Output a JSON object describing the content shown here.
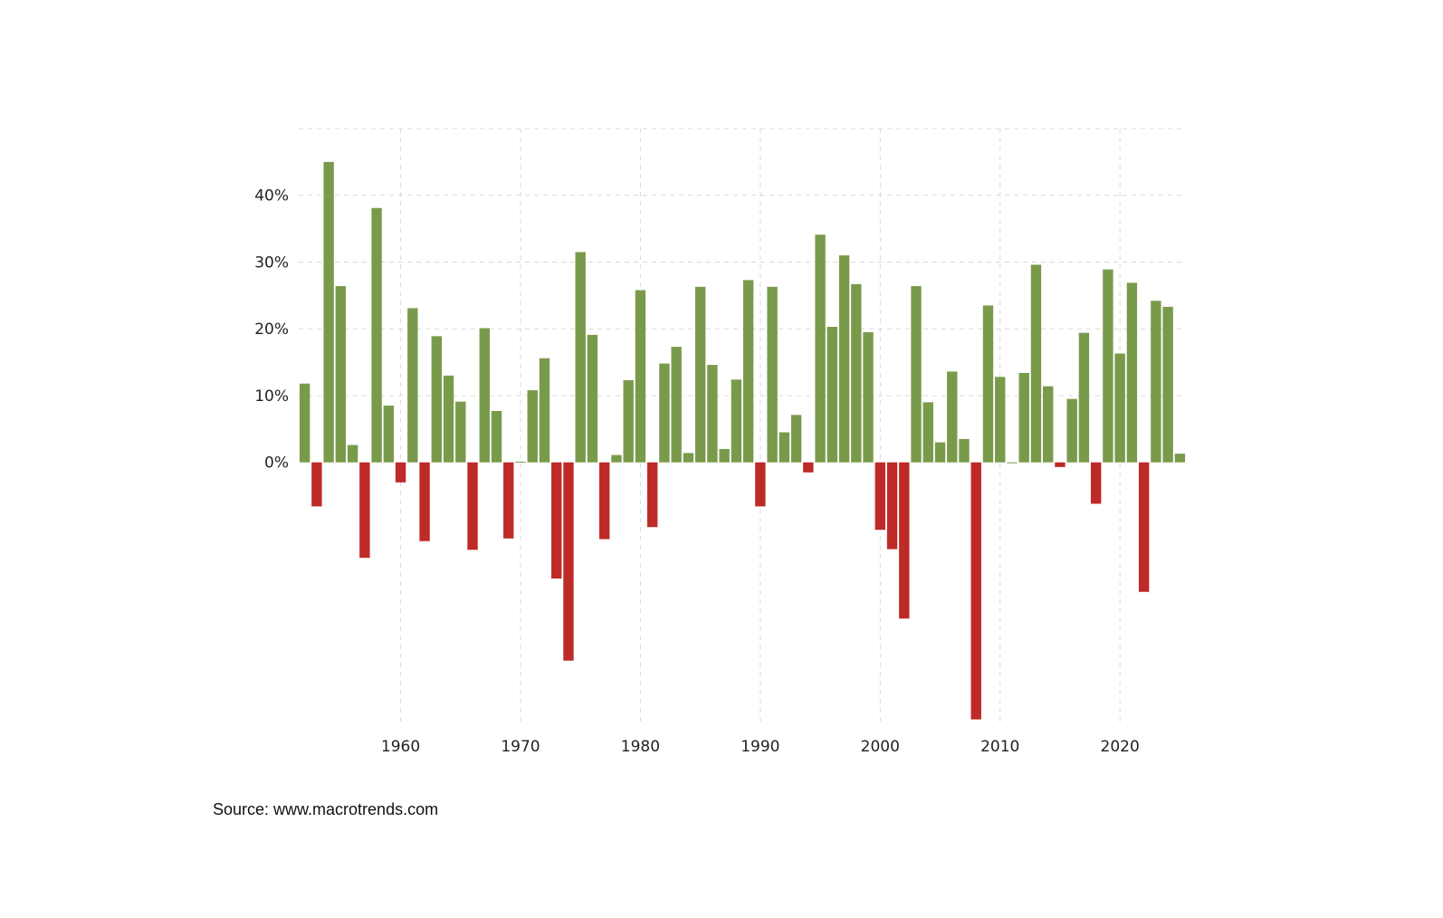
{
  "source": "Source: www.macrotrends.com",
  "colors": {
    "positive": "#7a9a4b",
    "negative": "#be2a27",
    "grid": "#d9d9d9",
    "text": "#222222"
  },
  "chart_data": {
    "type": "bar",
    "title": "",
    "xlabel": "",
    "ylabel": "",
    "grid": true,
    "legend": "none",
    "x_ticks": [
      1960,
      1970,
      1980,
      1990,
      2000,
      2010,
      2020
    ],
    "x_tick_labels": [
      "1960",
      "1970",
      "1980",
      "1990",
      "2000",
      "2010",
      "2020"
    ],
    "y_ticks": [
      0,
      10,
      20,
      30,
      40
    ],
    "y_tick_labels": [
      "0%",
      "10%",
      "20%",
      "30%",
      "40%"
    ],
    "ylim": [
      -39.5,
      50
    ],
    "xlim": [
      1951.5,
      2025.5
    ],
    "categories": [
      1952,
      1953,
      1954,
      1955,
      1956,
      1957,
      1958,
      1959,
      1960,
      1961,
      1962,
      1963,
      1964,
      1965,
      1966,
      1967,
      1968,
      1969,
      1970,
      1971,
      1972,
      1973,
      1974,
      1975,
      1976,
      1977,
      1978,
      1979,
      1980,
      1981,
      1982,
      1983,
      1984,
      1985,
      1986,
      1987,
      1988,
      1989,
      1990,
      1991,
      1992,
      1993,
      1994,
      1995,
      1996,
      1997,
      1998,
      1999,
      2000,
      2001,
      2002,
      2003,
      2004,
      2005,
      2006,
      2007,
      2008,
      2009,
      2010,
      2011,
      2012,
      2013,
      2014,
      2015,
      2016,
      2017,
      2018,
      2019,
      2020,
      2021,
      2022,
      2023,
      2024,
      2025
    ],
    "values": [
      11.8,
      -6.6,
      45.0,
      26.4,
      2.6,
      -14.3,
      38.1,
      8.5,
      -3.0,
      23.1,
      -11.8,
      18.9,
      13.0,
      9.1,
      -13.1,
      20.1,
      7.7,
      -11.4,
      0.1,
      10.8,
      15.6,
      -17.4,
      -29.7,
      31.5,
      19.1,
      -11.5,
      1.1,
      12.3,
      25.8,
      -9.7,
      14.8,
      17.3,
      1.4,
      26.3,
      14.6,
      2.0,
      12.4,
      27.3,
      -6.6,
      26.3,
      4.5,
      7.1,
      -1.5,
      34.1,
      20.3,
      31.0,
      26.7,
      19.5,
      -10.1,
      -13.0,
      -23.4,
      26.4,
      9.0,
      3.0,
      13.6,
      3.5,
      -38.5,
      23.5,
      12.8,
      0.0,
      13.4,
      29.6,
      11.4,
      -0.7,
      9.5,
      19.4,
      -6.2,
      28.9,
      16.3,
      26.9,
      -19.4,
      24.2,
      23.3,
      1.3
    ]
  }
}
